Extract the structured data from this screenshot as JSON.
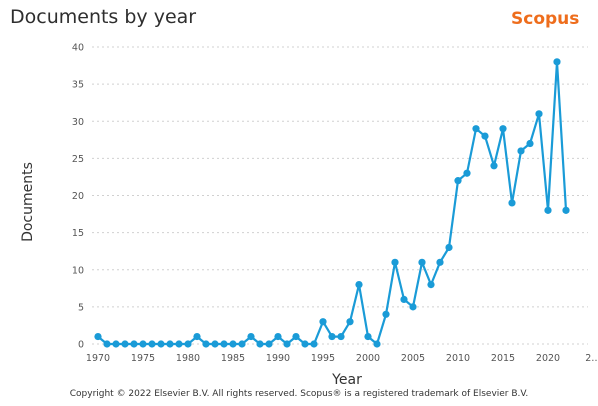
{
  "header": {
    "title": "Documents by year",
    "brand": "Scopus",
    "brand_color": "#ee6d1c"
  },
  "footer": {
    "copyright": "Copyright © 2022 Elsevier B.V. All rights reserved. Scopus® is a registered trademark of Elsevier B.V."
  },
  "chart_data": {
    "type": "line",
    "xlabel": "Year",
    "ylabel": "Documents",
    "xlim": [
      1970,
      2022
    ],
    "ylim": [
      0,
      40
    ],
    "x_ticks": [
      "1970",
      "1975",
      "1980",
      "1985",
      "1990",
      "1995",
      "2000",
      "2005",
      "2010",
      "2015",
      "2020",
      "2…"
    ],
    "y_ticks": [
      0,
      5,
      10,
      15,
      20,
      25,
      30,
      35,
      40
    ],
    "grid": "horizontal dashed",
    "series": [
      {
        "color": "#1a9bd7",
        "x": [
          1970,
          1971,
          1972,
          1973,
          1974,
          1975,
          1976,
          1977,
          1978,
          1979,
          1980,
          1981,
          1982,
          1983,
          1984,
          1985,
          1986,
          1987,
          1988,
          1989,
          1990,
          1991,
          1992,
          1993,
          1994,
          1995,
          1996,
          1997,
          1998,
          1999,
          2000,
          2001,
          2002,
          2003,
          2004,
          2005,
          2006,
          2007,
          2008,
          2009,
          2010,
          2011,
          2012,
          2013,
          2014,
          2015,
          2016,
          2017,
          2018,
          2019,
          2020,
          2021,
          2022
        ],
        "y": [
          1,
          0,
          0,
          0,
          0,
          0,
          0,
          0,
          0,
          0,
          0,
          1,
          0,
          0,
          0,
          0,
          0,
          1,
          0,
          0,
          1,
          0,
          1,
          0,
          0,
          3,
          1,
          1,
          3,
          8,
          1,
          0,
          4,
          11,
          6,
          5,
          11,
          8,
          11,
          13,
          22,
          23,
          29,
          28,
          24,
          29,
          19,
          26,
          27,
          31,
          18,
          38,
          18
        ]
      }
    ]
  }
}
